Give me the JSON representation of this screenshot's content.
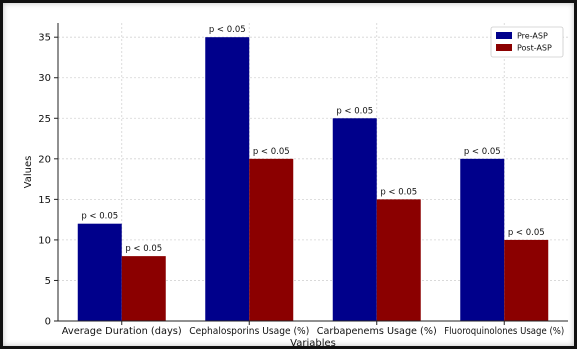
{
  "chart_data": {
    "type": "bar",
    "title": "",
    "xlabel": "Variables",
    "ylabel": "Values",
    "categories": [
      "Average Duration (days)",
      "Cephalosporins Usage (%)",
      "Carbapenems Usage (%)",
      "Fluoroquinolones Usage (%)"
    ],
    "series": [
      {
        "name": "Pre-ASP",
        "color": "#00008b",
        "values": [
          12,
          35,
          25,
          20
        ],
        "annotations": [
          "p < 0.05",
          "p < 0.05",
          "p < 0.05",
          "p < 0.05"
        ]
      },
      {
        "name": "Post-ASP",
        "color": "#8b0000",
        "values": [
          8,
          20,
          15,
          10
        ],
        "annotations": [
          "p < 0.05",
          "p < 0.05",
          "p < 0.05",
          "p < 0.05"
        ]
      }
    ],
    "ylim": [
      0,
      36.75
    ],
    "yticks": [
      0,
      5,
      10,
      15,
      20,
      25,
      30,
      35
    ],
    "grid": true,
    "legend_position": "top-right"
  }
}
